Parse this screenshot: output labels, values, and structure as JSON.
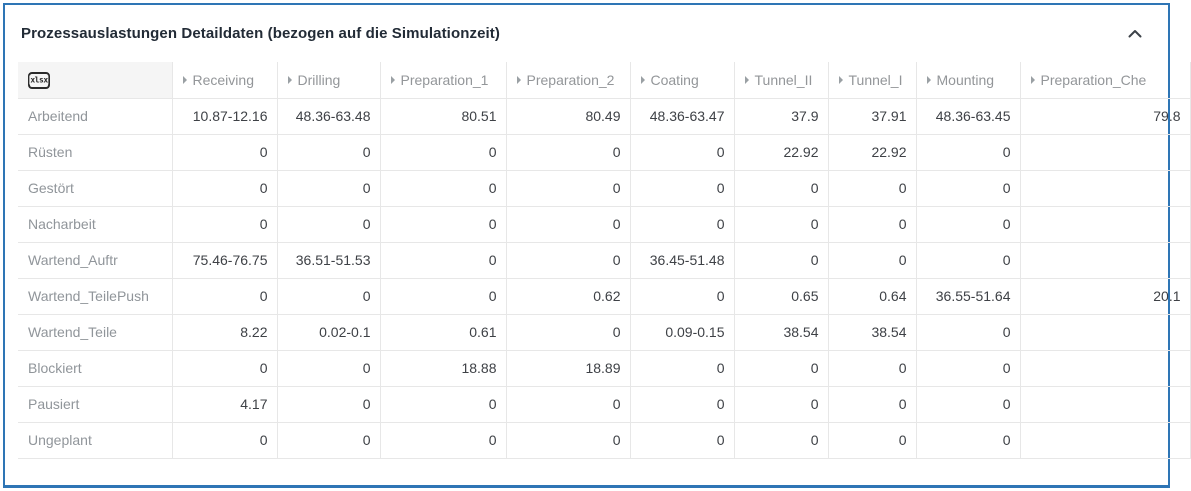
{
  "panel": {
    "title": "Prozessauslastungen Detaildaten (bezogen auf die Simulationzeit)",
    "accent_border_color": "#2e75b5",
    "collapse_icon": "chevron-up"
  },
  "table": {
    "export_icon": "xlsx-export",
    "export_icon_label": "xlsx",
    "columns": [
      "Receiving",
      "Drilling",
      "Preparation_1",
      "Preparation_2",
      "Coating",
      "Tunnel_II",
      "Tunnel_I",
      "Mounting",
      "Preparation_Che"
    ],
    "rows": [
      {
        "label": "Arbeitend",
        "values": [
          "10.87-12.16",
          "48.36-63.48",
          "80.51",
          "80.49",
          "48.36-63.47",
          "37.9",
          "37.91",
          "48.36-63.45",
          "79.8"
        ]
      },
      {
        "label": "Rüsten",
        "values": [
          "0",
          "0",
          "0",
          "0",
          "0",
          "22.92",
          "22.92",
          "0",
          ""
        ]
      },
      {
        "label": "Gestört",
        "values": [
          "0",
          "0",
          "0",
          "0",
          "0",
          "0",
          "0",
          "0",
          ""
        ]
      },
      {
        "label": "Nacharbeit",
        "values": [
          "0",
          "0",
          "0",
          "0",
          "0",
          "0",
          "0",
          "0",
          ""
        ]
      },
      {
        "label": "Wartend_Auftr",
        "values": [
          "75.46-76.75",
          "36.51-51.53",
          "0",
          "0",
          "36.45-51.48",
          "0",
          "0",
          "0",
          ""
        ]
      },
      {
        "label": "Wartend_TeilePush",
        "values": [
          "0",
          "0",
          "0",
          "0.62",
          "0",
          "0.65",
          "0.64",
          "36.55-51.64",
          "20.1"
        ]
      },
      {
        "label": "Wartend_Teile",
        "values": [
          "8.22",
          "0.02-0.1",
          "0.61",
          "0",
          "0.09-0.15",
          "38.54",
          "38.54",
          "0",
          ""
        ]
      },
      {
        "label": "Blockiert",
        "values": [
          "0",
          "0",
          "18.88",
          "18.89",
          "0",
          "0",
          "0",
          "0",
          ""
        ]
      },
      {
        "label": "Pausiert",
        "values": [
          "4.17",
          "0",
          "0",
          "0",
          "0",
          "0",
          "0",
          "0",
          ""
        ]
      },
      {
        "label": "Ungeplant",
        "values": [
          "0",
          "0",
          "0",
          "0",
          "0",
          "0",
          "0",
          "0",
          ""
        ]
      }
    ]
  }
}
